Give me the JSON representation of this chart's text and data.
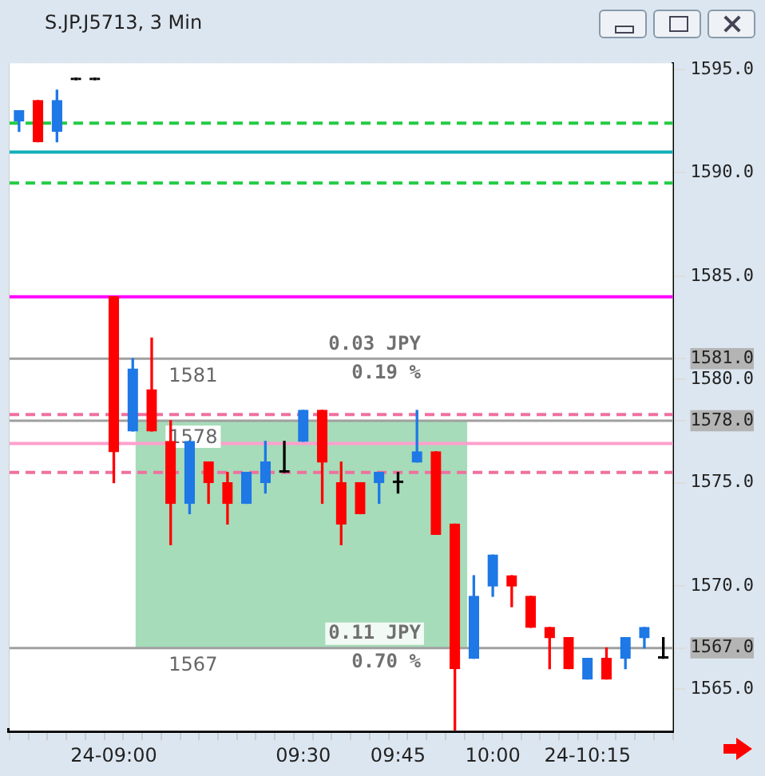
{
  "chart_data": {
    "type": "candlestick",
    "title": "S.JP.J5713, 3 Min",
    "categories": [
      null,
      null,
      null,
      null,
      null,
      "24-09:00",
      null,
      null,
      null,
      null,
      null,
      null,
      null,
      null,
      null,
      "09:30",
      null,
      null,
      null,
      null,
      "09:45",
      null,
      null,
      null,
      null,
      "10:00",
      null,
      null,
      null,
      null,
      "24-10:15",
      null,
      null,
      null,
      null
    ],
    "ohlc": [
      [
        1592.5,
        1593,
        1592,
        1593
      ],
      [
        1593.5,
        1593.5,
        1591.5,
        1591.5
      ],
      [
        1592,
        1594,
        1591.5,
        1593.5
      ],
      [
        1594.5,
        1594.5,
        1594.5,
        1594.5
      ],
      [
        1594.5,
        1594.5,
        1594.5,
        1594.5
      ],
      [
        1584,
        1584,
        1575,
        1576.5
      ],
      [
        1577.5,
        1581,
        1577.5,
        1580.5
      ],
      [
        1579.5,
        1582,
        1577.5,
        1577.5
      ],
      [
        1577,
        1578,
        1572,
        1574
      ],
      [
        1574,
        1577,
        1573.5,
        1577
      ],
      [
        1576,
        1576,
        1574,
        1575
      ],
      [
        1575,
        1575.5,
        1573,
        1574
      ],
      [
        1574,
        1575.5,
        1574,
        1575.5
      ],
      [
        1575,
        1577,
        1574.5,
        1576
      ],
      [
        1575.5,
        1577,
        1575.5,
        1575.5
      ],
      [
        1577,
        1578.5,
        1577,
        1578.5
      ],
      [
        1578.5,
        1578.5,
        1574,
        1576
      ],
      [
        1575,
        1576,
        1572,
        1573
      ],
      [
        1575,
        1575,
        1573.5,
        1573.5
      ],
      [
        1575,
        1575.5,
        1574,
        1575.5
      ],
      [
        1575,
        1575.5,
        1574.5,
        1575
      ],
      [
        1576,
        1578.5,
        1576,
        1576.5
      ],
      [
        1576.5,
        1576.5,
        1572.5,
        1572.5
      ],
      [
        1573,
        1573,
        1563,
        1566
      ],
      [
        1566.5,
        1570.5,
        1566.5,
        1569.5
      ],
      [
        1570,
        1571.5,
        1569.5,
        1571.5
      ],
      [
        1570.5,
        1570.5,
        1569,
        1570
      ],
      [
        1569.5,
        1569.5,
        1568,
        1568
      ],
      [
        1568,
        1568,
        1566,
        1567.5
      ],
      [
        1567.5,
        1567.5,
        1566,
        1566
      ],
      [
        1565.5,
        1566.5,
        1565.5,
        1566.5
      ],
      [
        1566.5,
        1567,
        1565.5,
        1565.5
      ],
      [
        1566.5,
        1567.5,
        1566,
        1567.5
      ],
      [
        1567.5,
        1568,
        1567,
        1568
      ],
      [
        1566.5,
        1567.5,
        1566.5,
        1566.5
      ]
    ],
    "colors": [
      "#1e78e6",
      "#ff0000",
      "#1e78e6",
      "#000000",
      "#000000",
      "#ff0000",
      "#1e78e6",
      "#ff0000",
      "#ff0000",
      "#1e78e6",
      "#ff0000",
      "#ff0000",
      "#1e78e6",
      "#1e78e6",
      "#000000",
      "#1e78e6",
      "#ff0000",
      "#ff0000",
      "#ff0000",
      "#1e78e6",
      "#000000",
      "#1e78e6",
      "#ff0000",
      "#ff0000",
      "#1e78e6",
      "#1e78e6",
      "#ff0000",
      "#ff0000",
      "#ff0000",
      "#ff0000",
      "#1e78e6",
      "#ff0000",
      "#1e78e6",
      "#1e78e6",
      "#000000"
    ],
    "ylim": [
      1563,
      1595.3
    ],
    "yticks": [
      {
        "value": 1565,
        "label": "1565.0"
      },
      {
        "value": 1567,
        "label": "1567.0"
      },
      {
        "value": 1570,
        "label": "1570.0"
      },
      {
        "value": 1575,
        "label": "1575.0"
      },
      {
        "value": 1578,
        "label": "1578.0"
      },
      {
        "value": 1580,
        "label": "1580.0"
      },
      {
        "value": 1581,
        "label": "1581.0"
      },
      {
        "value": 1585,
        "label": "1585.0"
      },
      {
        "value": 1590,
        "label": "1590.0"
      },
      {
        "value": 1595,
        "label": "1595.0"
      }
    ],
    "ref_lines": [
      {
        "axis": "y",
        "value": 1592.4,
        "color": "#22cc44",
        "line_style": "dashed"
      },
      {
        "axis": "y",
        "value": 1591,
        "color": "#10b0b8",
        "line_style": "solid"
      },
      {
        "axis": "y",
        "value": 1589.5,
        "color": "#22cc44",
        "line_style": "dashed"
      },
      {
        "axis": "y",
        "value": 1584,
        "color": "#ff00ff",
        "line_style": "solid"
      },
      {
        "axis": "y",
        "value": 1581,
        "label": "1581",
        "color": "#a0a0a0",
        "line_style": "solid"
      },
      {
        "axis": "y",
        "value": 1578.3,
        "color": "#f070a0",
        "line_style": "dashed"
      },
      {
        "axis": "y",
        "value": 1578,
        "label": "1578",
        "color": "#a0a0a0",
        "line_style": "solid"
      },
      {
        "axis": "y",
        "value": 1576.9,
        "color": "#ffa0cc",
        "line_style": "solid"
      },
      {
        "axis": "y",
        "value": 1575.5,
        "color": "#f070a0",
        "line_style": "dashed"
      },
      {
        "axis": "y",
        "value": 1567,
        "label": "1567",
        "color": "#a0a0a0",
        "line_style": "solid"
      }
    ],
    "bands": [
      {
        "axis": "y",
        "from": 1567,
        "to": 1578,
        "color": "#5cbf80"
      }
    ],
    "annotations": [
      "0.03 JPY",
      "0.19 %",
      "0.11 JPY",
      "0.70 %"
    ],
    "grid": true,
    "legend": false
  }
}
